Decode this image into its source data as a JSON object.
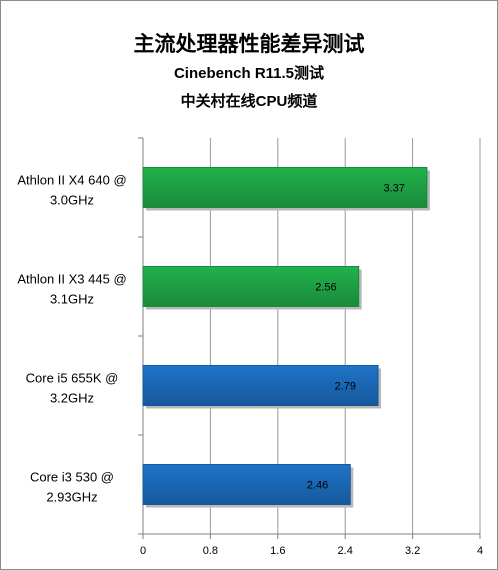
{
  "chart_data": {
    "type": "bar",
    "orientation": "horizontal",
    "title": "主流处理器性能差异测试",
    "subtitle": "Cinebench R11.5测试",
    "subtitle2": "中关村在线CPU频道",
    "categories": [
      [
        "Athlon II X4 640 @",
        "3.0GHz"
      ],
      [
        "Athlon II X3 445 @",
        "3.1GHz"
      ],
      [
        "Core i5 655K  @",
        "3.2GHz"
      ],
      [
        "Core i3 530  @",
        "2.93GHz"
      ]
    ],
    "values": [
      3.37,
      2.56,
      2.79,
      2.46
    ],
    "data_labels": [
      "3.37",
      "2.56",
      "2.79",
      "2.46"
    ],
    "bar_colors": [
      "#22b24c",
      "#22b24c",
      "#1f73c9",
      "#1f73c9"
    ],
    "bar_edge_colors": [
      "#1a8a3a",
      "#1a8a3a",
      "#17589c",
      "#17589c"
    ],
    "xlim": [
      0,
      4
    ],
    "ticks": [
      "0",
      "0.8",
      "1.6",
      "2.4",
      "3.2",
      "4"
    ],
    "tick_values": [
      0,
      0.8,
      1.6,
      2.4,
      3.2,
      4
    ],
    "grid": true,
    "xlabel": "",
    "ylabel": ""
  }
}
